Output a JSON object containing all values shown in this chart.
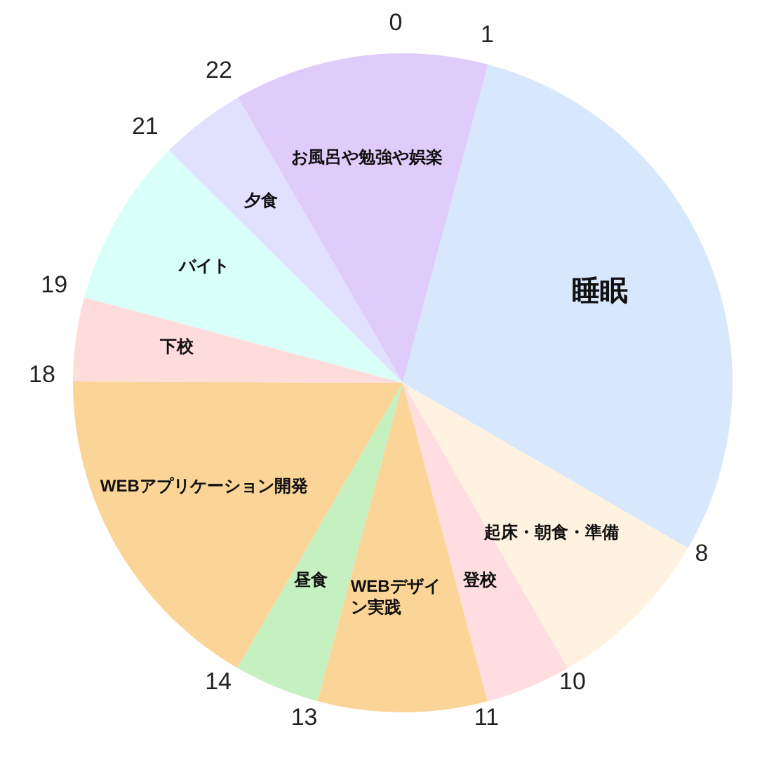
{
  "chart_data": {
    "type": "pie",
    "categories": [
      "お風呂や勉強や娯楽",
      "睡眠",
      "起床・朝食・準備",
      "登校",
      "WEBデザイン実践",
      "昼食",
      "WEBアプリケーション開発",
      "下校",
      "バイト",
      "夕食"
    ],
    "values": [
      12.5,
      29.2,
      8.3,
      4.2,
      8.3,
      4.2,
      16.7,
      4.1,
      8.3,
      4.2
    ],
    "colors": [
      "#e0ccfb",
      "#d7e8fc",
      "#fff2e0",
      "#ffdde0",
      "#fbd597",
      "#c5f1c0",
      "#fbd597",
      "#ffdcdc",
      "#d8fff8",
      "#e1e0ff"
    ],
    "annotations": [
      "0",
      "1",
      "8",
      "10",
      "11",
      "13",
      "14",
      "18",
      "19",
      "21",
      "22"
    ]
  }
}
